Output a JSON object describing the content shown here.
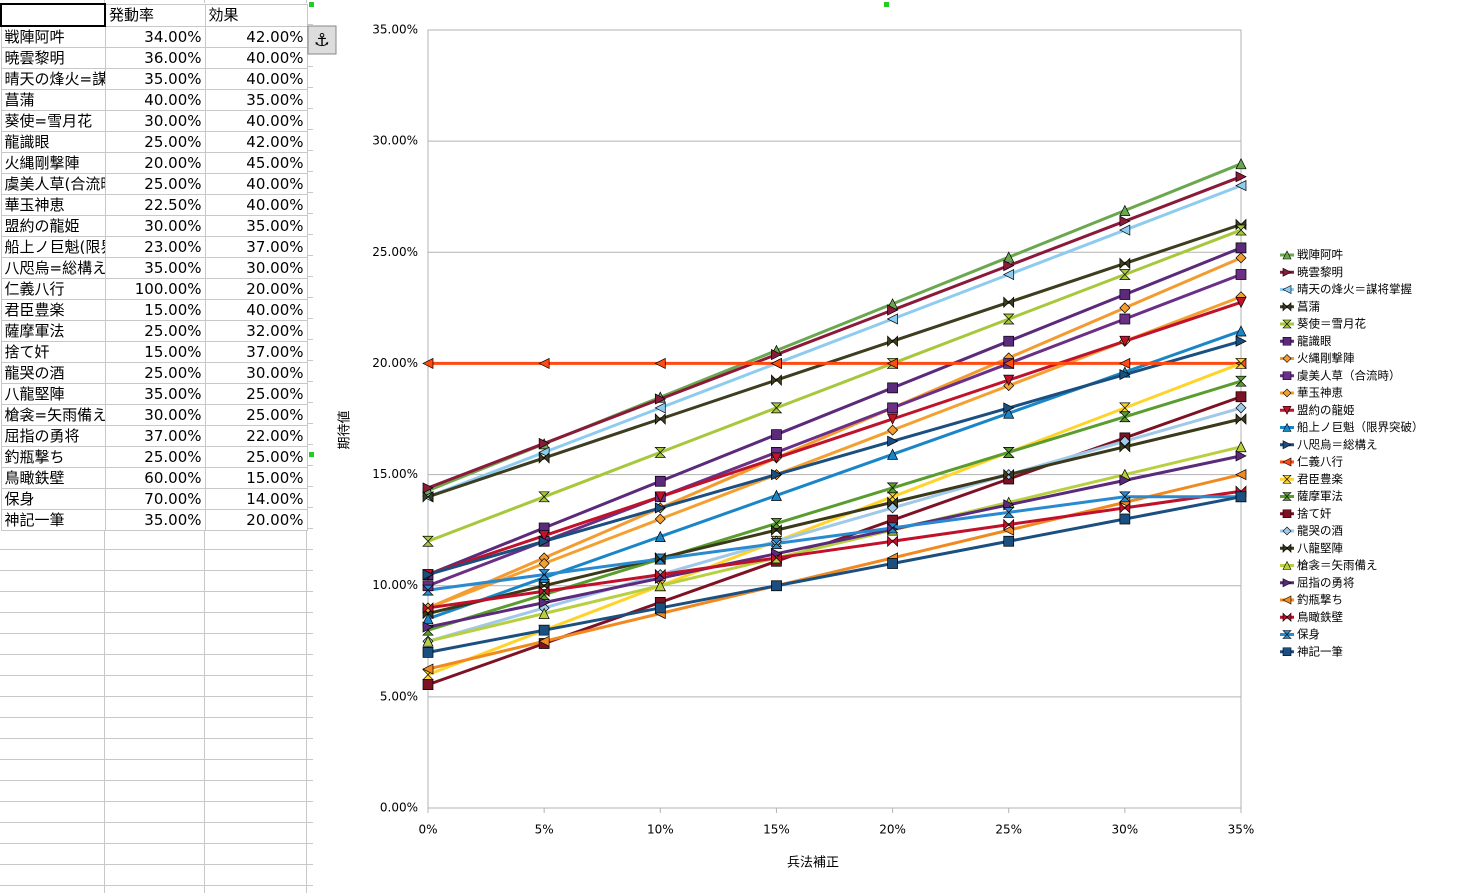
{
  "table": {
    "columns": [
      "発動率",
      "効果"
    ],
    "rows": [
      [
        "戦陣阿吽",
        "34.00%",
        "42.00%"
      ],
      [
        "暁雲黎明",
        "36.00%",
        "40.00%"
      ],
      [
        "晴天の烽火=謀将掌握",
        "35.00%",
        "40.00%"
      ],
      [
        "菖蒲",
        "40.00%",
        "35.00%"
      ],
      [
        "葵使=雪月花",
        "30.00%",
        "40.00%"
      ],
      [
        "龍識眼",
        "25.00%",
        "42.00%"
      ],
      [
        "火縄剛撃陣",
        "20.00%",
        "45.00%"
      ],
      [
        "虞美人草(合流時)",
        "25.00%",
        "40.00%"
      ],
      [
        "華玉神恵",
        "22.50%",
        "40.00%"
      ],
      [
        "盟約の龍姫",
        "30.00%",
        "35.00%"
      ],
      [
        "船上ノ巨魁(限界突破)",
        "23.00%",
        "37.00%"
      ],
      [
        "八咫烏=総構え",
        "35.00%",
        "30.00%"
      ],
      [
        "仁義八行",
        "100.00%",
        "20.00%"
      ],
      [
        "君臣豊楽",
        "15.00%",
        "40.00%"
      ],
      [
        "薩摩軍法",
        "25.00%",
        "32.00%"
      ],
      [
        "捨て奸",
        "15.00%",
        "37.00%"
      ],
      [
        "龍哭の酒",
        "25.00%",
        "30.00%"
      ],
      [
        "八龍堅陣",
        "35.00%",
        "25.00%"
      ],
      [
        "槍衾=矢雨備え",
        "30.00%",
        "25.00%"
      ],
      [
        "屈指の勇将",
        "37.00%",
        "22.00%"
      ],
      [
        "釣瓶撃ち",
        "25.00%",
        "25.00%"
      ],
      [
        "鳥瞰鉄壁",
        "60.00%",
        "15.00%"
      ],
      [
        "保身",
        "70.00%",
        "14.00%"
      ],
      [
        "神記一筆",
        "35.00%",
        "20.00%"
      ]
    ]
  },
  "chart_data": {
    "type": "line",
    "x_label": "兵法補正",
    "y_label": "期待値",
    "categories": [
      "0%",
      "5%",
      "10%",
      "15%",
      "20%",
      "25%",
      "30%",
      "35%"
    ],
    "ylim": [
      0,
      35
    ],
    "yticks": [
      {
        "value": 0,
        "label": "0.00%"
      },
      {
        "value": 5,
        "label": "5.00%"
      },
      {
        "value": 10,
        "label": "10.00%"
      },
      {
        "value": 15,
        "label": "15.00%"
      },
      {
        "value": 20,
        "label": "20.00%"
      },
      {
        "value": 25,
        "label": "25.00%"
      },
      {
        "value": 30,
        "label": "30.00%"
      },
      {
        "value": 35,
        "label": "35.00%"
      }
    ],
    "grid": true,
    "legend": "right",
    "series": [
      {
        "name": "戦陣阿吽",
        "color": "#6aa84f",
        "values": [
          14.28,
          16.38,
          18.48,
          20.58,
          22.68,
          24.78,
          26.88,
          28.98
        ]
      },
      {
        "name": "暁雲黎明",
        "color": "#8b1a3a",
        "values": [
          14.4,
          16.4,
          18.4,
          20.4,
          22.4,
          24.4,
          26.4,
          28.4
        ]
      },
      {
        "name": "晴天の烽火＝謀将掌握",
        "color": "#8ecbf0",
        "values": [
          14,
          16,
          18,
          20,
          22,
          24,
          26,
          28
        ]
      },
      {
        "name": "菖蒲",
        "color": "#3d3d1f",
        "values": [
          14,
          15.75,
          17.5,
          19.25,
          21,
          22.75,
          24.5,
          26.25
        ]
      },
      {
        "name": "葵使＝雪月花",
        "color": "#a6c83a",
        "values": [
          12,
          14,
          16,
          18,
          20,
          22,
          24,
          26
        ]
      },
      {
        "name": "龍識眼",
        "color": "#5b2a7a",
        "values": [
          10.5,
          12.6,
          14.7,
          16.8,
          18.9,
          21,
          23.1,
          25.2
        ]
      },
      {
        "name": "火縄剛撃陣",
        "color": "#f39b2e",
        "values": [
          9,
          11.25,
          13.5,
          15.75,
          18,
          20.25,
          22.5,
          24.75
        ]
      },
      {
        "name": "虞美人草（合流時）",
        "color": "#6b2f86",
        "values": [
          10,
          12,
          14,
          16,
          18,
          20,
          22,
          24
        ]
      },
      {
        "name": "華玉神恵",
        "color": "#f4a030",
        "values": [
          9,
          11,
          13,
          15,
          17,
          19,
          21,
          23
        ]
      },
      {
        "name": "盟約の龍姫",
        "color": "#c0122a",
        "values": [
          10.5,
          12.25,
          14,
          15.75,
          17.5,
          19.25,
          21,
          22.75
        ]
      },
      {
        "name": "船上ノ巨魁（限界突破）",
        "color": "#1a86c8",
        "values": [
          8.51,
          10.36,
          12.21,
          14.06,
          15.91,
          17.76,
          19.61,
          21.46
        ]
      },
      {
        "name": "八咫烏＝総構え",
        "color": "#1a4f80",
        "values": [
          10.5,
          12,
          13.5,
          15,
          16.5,
          18,
          19.5,
          21
        ]
      },
      {
        "name": "仁義八行",
        "color": "#ff4a12",
        "values": [
          20,
          20,
          20,
          20,
          20,
          20,
          20,
          20
        ]
      },
      {
        "name": "君臣豊楽",
        "color": "#ffd42a",
        "values": [
          6,
          8,
          10,
          12,
          14,
          16,
          18,
          20
        ]
      },
      {
        "name": "薩摩軍法",
        "color": "#5a9c2e",
        "values": [
          8,
          9.6,
          11.2,
          12.8,
          14.4,
          16,
          17.6,
          19.2
        ]
      },
      {
        "name": "捨て奸",
        "color": "#7d1225",
        "values": [
          5.55,
          7.4,
          9.25,
          11.1,
          12.95,
          14.8,
          16.65,
          18.5
        ]
      },
      {
        "name": "龍哭の酒",
        "color": "#a0c8e8",
        "values": [
          7.5,
          9,
          10.5,
          12,
          13.5,
          15,
          16.5,
          18
        ]
      },
      {
        "name": "八龍堅陣",
        "color": "#3a3a1a",
        "values": [
          8.75,
          10,
          11.25,
          12.5,
          13.75,
          15,
          16.25,
          17.5
        ]
      },
      {
        "name": "槍衾＝矢雨備え",
        "color": "#b8d040",
        "values": [
          7.5,
          8.75,
          10,
          11.25,
          12.5,
          13.75,
          15,
          16.25
        ]
      },
      {
        "name": "屈指の勇将",
        "color": "#5b2a7a",
        "values": [
          8.14,
          9.24,
          10.34,
          11.44,
          12.54,
          13.64,
          14.74,
          15.84
        ]
      },
      {
        "name": "釣瓶撃ち",
        "color": "#f08a20",
        "values": [
          6.25,
          7.5,
          8.75,
          10,
          11.25,
          12.5,
          13.75,
          15
        ]
      },
      {
        "name": "鳥瞰鉄壁",
        "color": "#c0102a",
        "values": [
          9,
          9.75,
          10.5,
          11.25,
          12,
          12.75,
          13.5,
          14.25
        ]
      },
      {
        "name": "保身",
        "color": "#2a8ad0",
        "values": [
          9.8,
          10.5,
          11.2,
          11.9,
          12.6,
          13.3,
          14,
          14
        ]
      },
      {
        "name": "神記一筆",
        "color": "#1a4f80",
        "values": [
          7,
          8,
          9,
          10,
          11,
          12,
          13,
          14
        ]
      }
    ]
  }
}
